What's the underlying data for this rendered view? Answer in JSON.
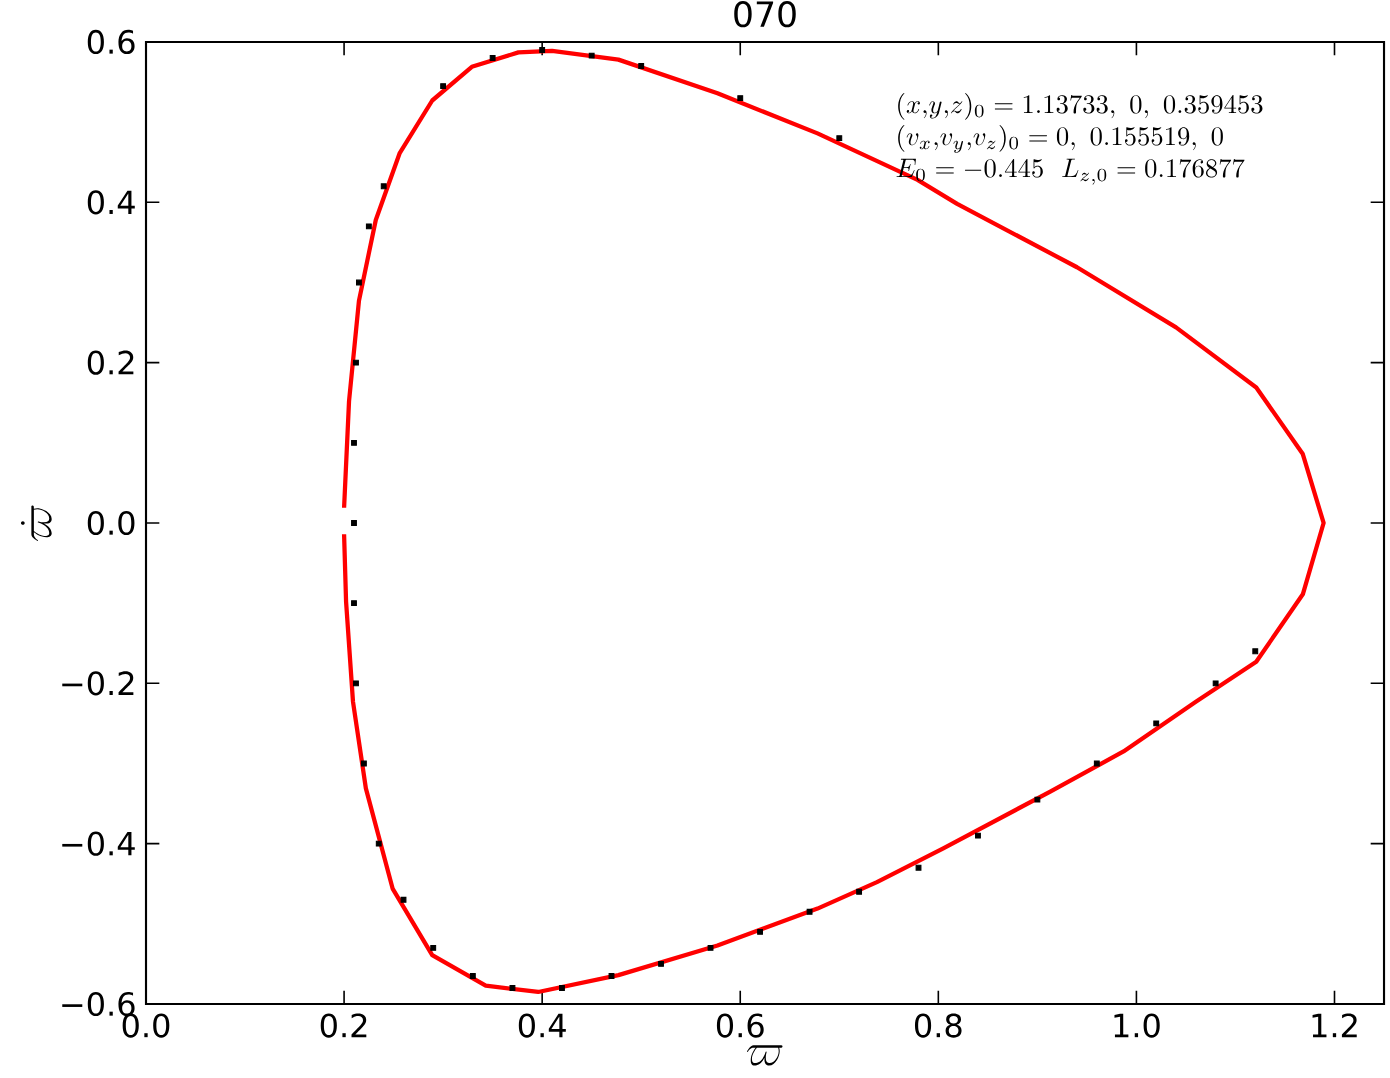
{
  "chart_data": {
    "type": "line",
    "title": "070",
    "xlabel": "\\varpi",
    "ylabel": "\\dot{\\varpi}",
    "xlim": [
      0,
      1.25
    ],
    "ylim": [
      -0.6,
      0.6
    ],
    "xticks": [
      {
        "value": 0,
        "label": "0.0"
      },
      {
        "value": 0.2,
        "label": "0.2"
      },
      {
        "value": 0.4,
        "label": "0.4"
      },
      {
        "value": 0.6,
        "label": "0.6"
      },
      {
        "value": 0.8,
        "label": "0.8"
      },
      {
        "value": 1.0,
        "label": "1.0"
      },
      {
        "value": 1.2,
        "label": "1.2"
      }
    ],
    "yticks": [
      {
        "value": -0.6,
        "label": "−0.6"
      },
      {
        "value": -0.4,
        "label": "−0.4"
      },
      {
        "value": -0.2,
        "label": "−0.2"
      },
      {
        "value": 0,
        "label": "0.0"
      },
      {
        "value": 0.2,
        "label": "0.2"
      },
      {
        "value": 0.4,
        "label": "0.4"
      },
      {
        "value": 0.6,
        "label": "0.6"
      }
    ],
    "grid": false,
    "annotations": [
      "(x{,}y{,}z)_0=1.13733,\\ 0,\\ 0.359453",
      "(v_x{,}v_y{,}v_z)_0=0,\\ 0.155519,\\ 0",
      "E_0=-0.445\\ \\ L_{z,0}=0.176877"
    ],
    "series": [
      {
        "type": "scatter",
        "color": "#000000",
        "marker": "square",
        "x": [
          0.21,
          0.21,
          0.212,
          0.215,
          0.225,
          0.24,
          0.21,
          0.212,
          0.22,
          0.235,
          0.26,
          0.29,
          0.33,
          0.37,
          0.42,
          0.47,
          0.52,
          0.57,
          0.62,
          0.67,
          0.72,
          0.78,
          0.84,
          0.9,
          0.96,
          1.02,
          1.08,
          1.12,
          0.3,
          0.35,
          0.4,
          0.45,
          0.5,
          0.6,
          0.7
        ],
        "values": [
          0.0,
          0.1,
          0.2,
          0.3,
          0.37,
          0.42,
          -0.1,
          -0.2,
          -0.3,
          -0.4,
          -0.47,
          -0.53,
          -0.565,
          -0.58,
          -0.58,
          -0.565,
          -0.55,
          -0.53,
          -0.51,
          -0.485,
          -0.46,
          -0.43,
          -0.39,
          -0.345,
          -0.3,
          -0.25,
          -0.2,
          -0.16,
          0.545,
          0.58,
          0.59,
          0.583,
          0.57,
          0.53,
          0.48
        ]
      },
      {
        "color": "#ff0000",
        "line_style": "solid",
        "x": [
          0.2,
          0.205,
          0.215,
          0.232,
          0.256,
          0.289,
          0.329,
          0.376,
          0.41,
          0.477,
          0.577,
          0.678,
          0.779,
          0.819,
          0.94,
          1.04,
          1.121,
          1.168,
          1.189,
          1.168,
          1.121,
          1.06,
          0.987,
          0.913,
          0.805,
          0.738,
          0.678,
          0.577,
          0.477,
          0.396,
          0.343,
          0.289,
          0.249,
          0.222,
          0.209,
          0.202,
          0.2
        ],
        "values": [
          0.019,
          0.152,
          0.277,
          0.378,
          0.461,
          0.527,
          0.569,
          0.587,
          0.589,
          0.578,
          0.536,
          0.486,
          0.428,
          0.398,
          0.319,
          0.244,
          0.169,
          0.086,
          0,
          -0.089,
          -0.173,
          -0.223,
          -0.285,
          -0.335,
          -0.406,
          -0.448,
          -0.481,
          -0.527,
          -0.564,
          -0.585,
          -0.577,
          -0.539,
          -0.456,
          -0.331,
          -0.223,
          -0.098,
          -0.014
        ]
      }
    ]
  }
}
